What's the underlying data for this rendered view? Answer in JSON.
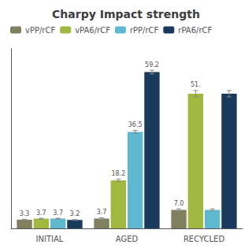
{
  "chart_data": {
    "type": "bar",
    "title": "Charpy Impact strength",
    "categories": [
      "INITIAL",
      "AGED",
      "RECYCLED"
    ],
    "series": [
      {
        "name": "vPP/rCF",
        "color": "#808060",
        "values": [
          3.3,
          3.7,
          7.0
        ],
        "errors": [
          0.15,
          0.3,
          0.4
        ],
        "value_labels": [
          "3.3",
          "3.7",
          "7.0"
        ]
      },
      {
        "name": "vPA6/rCF",
        "color": "#a0b840",
        "values": [
          3.7,
          18.2,
          51.0
        ],
        "errors": [
          0.15,
          0.5,
          1.2
        ],
        "value_labels": [
          "3.7",
          "18.2",
          "51."
        ]
      },
      {
        "name": "rPP/rCF",
        "color": "#60b8d0",
        "values": [
          3.7,
          36.5,
          7.0
        ],
        "errors": [
          0.15,
          0.6,
          0.4
        ],
        "value_labels": [
          "3.7",
          "36.5",
          null
        ]
      },
      {
        "name": "rPA6/rCF",
        "color": "#1a3a5c",
        "values": [
          3.2,
          59.2,
          51.0
        ],
        "errors": [
          0.15,
          0.7,
          1.2
        ],
        "value_labels": [
          "3.2",
          "59.2",
          null
        ]
      }
    ],
    "ylim": [
      0,
      68
    ],
    "grid": false,
    "legend": "upper left",
    "data_labels": true,
    "tick_labels": "x"
  }
}
